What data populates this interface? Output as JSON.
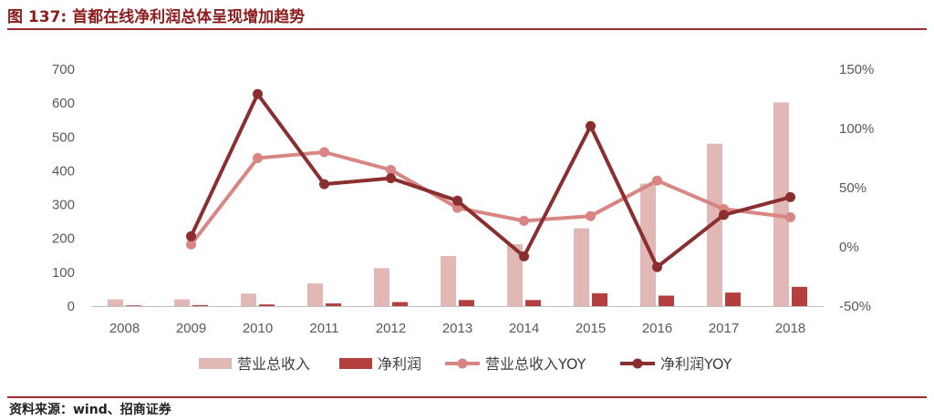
{
  "header": {
    "title": "图 137:  首都在线净利润总体呈现增加趋势"
  },
  "footer": {
    "source": "资料来源：wind、招商证券"
  },
  "colors": {
    "revenue": "#e2b8b6",
    "profit": "#b33f3f",
    "revenue_yoy": "#d98583",
    "profit_yoy": "#8b2e2f",
    "accent": "#9e2a2b"
  },
  "chart_data": {
    "type": "bar",
    "categories": [
      "2008",
      "2009",
      "2010",
      "2011",
      "2012",
      "2013",
      "2014",
      "2015",
      "2016",
      "2017",
      "2018"
    ],
    "left_axis": {
      "ylim": [
        0,
        700
      ],
      "ticks": [
        "0",
        "100",
        "200",
        "300",
        "400",
        "500",
        "600",
        "700"
      ]
    },
    "right_axis": {
      "ylim": [
        -50,
        150
      ],
      "ticks": [
        "-50%",
        "0%",
        "50%",
        "100%",
        "150%"
      ]
    },
    "series": [
      {
        "name": "营业总收入",
        "type": "bar",
        "axis": "left",
        "values": [
          20,
          20,
          37,
          67,
          112,
          148,
          183,
          230,
          362,
          480,
          602
        ]
      },
      {
        "name": "净利润",
        "type": "bar",
        "axis": "left",
        "values": [
          2,
          3,
          5,
          8,
          12,
          18,
          18,
          38,
          31,
          40,
          57
        ]
      },
      {
        "name": "营业总收入YOY",
        "type": "line",
        "axis": "right",
        "values": [
          null,
          2,
          75,
          80,
          65,
          33,
          22,
          26,
          56,
          32,
          25
        ]
      },
      {
        "name": "净利润YOY",
        "type": "line",
        "axis": "right",
        "values": [
          null,
          9,
          129,
          53,
          58,
          39,
          -8,
          102,
          -17,
          27,
          42
        ]
      }
    ],
    "legend": "bottom"
  }
}
